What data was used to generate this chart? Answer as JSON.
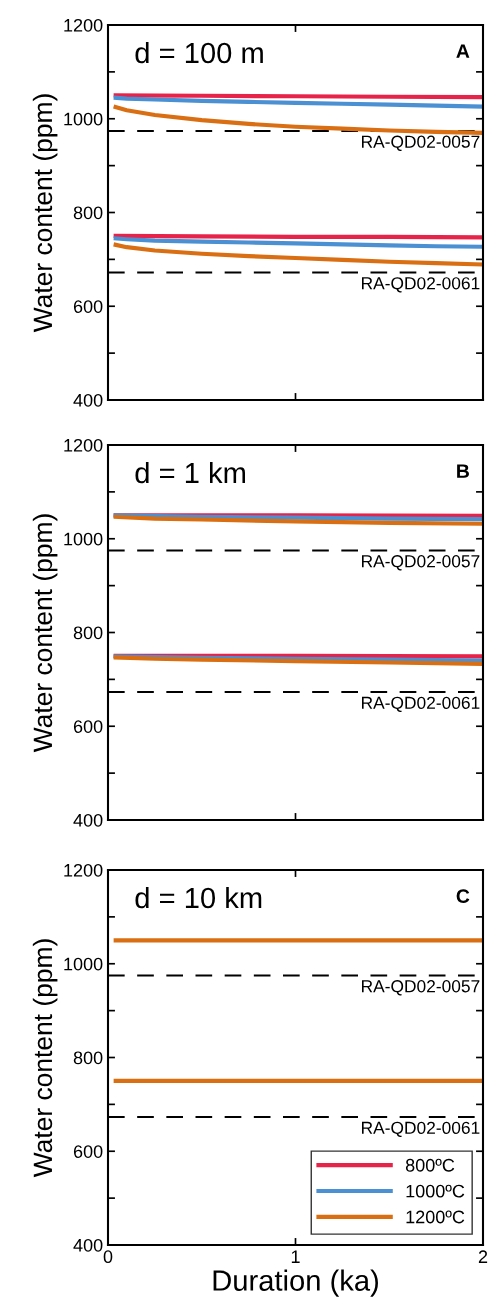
{
  "chart_data": [
    {
      "type": "line",
      "title": "d = 100 m",
      "ylabel": "Water content (ppm)",
      "xlim": [
        0,
        2
      ],
      "xticks": [
        0,
        {
          "value": 1,
          "label": null
        },
        2
      ],
      "ylim": [
        400,
        1200
      ],
      "yticks": [
        400,
        {
          "value": 500,
          "label": null
        },
        600,
        {
          "value": 700,
          "label": null
        },
        800,
        {
          "value": 900,
          "label": null
        },
        1000,
        {
          "value": 1100,
          "label": null
        },
        1200
      ],
      "tick_labels": "y",
      "grid": false,
      "legend": false,
      "line_style": "solid",
      "marker": "none",
      "annotations": [
        "A"
      ],
      "ref_lines": [
        {
          "axis": "y",
          "value": 974,
          "label": "RA-QD02-0057",
          "color": "#000000",
          "line_style": "dashed"
        },
        {
          "axis": "y",
          "value": 672,
          "label": "RA-QD02-0061",
          "color": "#000000",
          "line_style": "dashed"
        }
      ],
      "series": [
        {
          "color": "#e8234a",
          "x": [
            0.03,
            0.5,
            1,
            1.5,
            2
          ],
          "values": [
            1050,
            1049,
            1048,
            1047,
            1046
          ]
        },
        {
          "color": "#4a90d2",
          "x": [
            0.03,
            0.1,
            0.25,
            0.5,
            0.75,
            1,
            1.25,
            1.5,
            1.75,
            2
          ],
          "values": [
            1045,
            1043,
            1041,
            1038,
            1036,
            1034,
            1032,
            1030,
            1028,
            1026
          ]
        },
        {
          "color": "#d96f12",
          "x": [
            0.03,
            0.1,
            0.25,
            0.5,
            0.75,
            1,
            1.25,
            1.5,
            1.75,
            2
          ],
          "values": [
            1026,
            1018,
            1008,
            997,
            989,
            983,
            979,
            975,
            972,
            970
          ]
        },
        {
          "color": "#e8234a",
          "x": [
            0.03,
            0.5,
            1,
            1.5,
            2
          ],
          "values": [
            750,
            749,
            748,
            748,
            747
          ]
        },
        {
          "color": "#4a90d2",
          "x": [
            0.03,
            0.1,
            0.25,
            0.5,
            0.75,
            1,
            1.25,
            1.5,
            1.75,
            2
          ],
          "values": [
            745,
            743,
            740,
            738,
            736,
            734,
            732,
            730,
            728,
            727
          ]
        },
        {
          "color": "#d96f12",
          "x": [
            0.03,
            0.1,
            0.25,
            0.5,
            0.75,
            1,
            1.25,
            1.5,
            1.75,
            2
          ],
          "values": [
            732,
            726,
            719,
            712,
            707,
            703,
            699,
            695,
            692,
            689
          ]
        }
      ]
    },
    {
      "type": "line",
      "title": "d = 1 km",
      "ylabel": "Water content (ppm)",
      "xlim": [
        0,
        2
      ],
      "xticks": [
        0,
        {
          "value": 1,
          "label": null
        },
        2
      ],
      "ylim": [
        400,
        1200
      ],
      "yticks": [
        400,
        {
          "value": 500,
          "label": null
        },
        600,
        {
          "value": 700,
          "label": null
        },
        800,
        {
          "value": 900,
          "label": null
        },
        1000,
        {
          "value": 1100,
          "label": null
        },
        1200
      ],
      "tick_labels": "y",
      "grid": false,
      "legend": false,
      "line_style": "solid",
      "marker": "none",
      "annotations": [
        "B"
      ],
      "ref_lines": [
        {
          "axis": "y",
          "value": 975,
          "label": "RA-QD02-0057",
          "color": "#000000",
          "line_style": "dashed"
        },
        {
          "axis": "y",
          "value": 673,
          "label": "RA-QD02-0061",
          "color": "#000000",
          "line_style": "dashed"
        }
      ],
      "series": [
        {
          "color": "#e8234a",
          "x": [
            0.03,
            1,
            2
          ],
          "values": [
            1050,
            1050,
            1049
          ]
        },
        {
          "color": "#4a90d2",
          "x": [
            0.03,
            0.5,
            1,
            1.5,
            2
          ],
          "values": [
            1050,
            1047,
            1045,
            1043,
            1042
          ]
        },
        {
          "color": "#d96f12",
          "x": [
            0.03,
            0.25,
            0.5,
            1,
            1.5,
            2
          ],
          "values": [
            1047,
            1043,
            1041,
            1037,
            1034,
            1032
          ]
        },
        {
          "color": "#e8234a",
          "x": [
            0.03,
            1,
            2
          ],
          "values": [
            750,
            750,
            749
          ]
        },
        {
          "color": "#4a90d2",
          "x": [
            0.03,
            0.5,
            1,
            1.5,
            2
          ],
          "values": [
            749,
            746,
            744,
            742,
            740
          ]
        },
        {
          "color": "#d96f12",
          "x": [
            0.03,
            0.25,
            0.5,
            1,
            1.5,
            2
          ],
          "values": [
            747,
            744,
            742,
            739,
            736,
            733
          ]
        }
      ]
    },
    {
      "type": "line",
      "title": "d = 10 km",
      "xlabel": "Duration (ka)",
      "ylabel": "Water content (ppm)",
      "xlim": [
        0,
        2
      ],
      "xticks": [
        0,
        1,
        2
      ],
      "ylim": [
        400,
        1200
      ],
      "yticks": [
        400,
        {
          "value": 500,
          "label": null
        },
        600,
        {
          "value": 700,
          "label": null
        },
        800,
        {
          "value": 900,
          "label": null
        },
        1000,
        {
          "value": 1100,
          "label": null
        },
        1200
      ],
      "grid": false,
      "legend": "bottom right",
      "line_style": "solid",
      "marker": "none",
      "annotations": [
        "C"
      ],
      "ref_lines": [
        {
          "axis": "y",
          "value": 975,
          "label": "RA-QD02-0057",
          "color": "#000000",
          "line_style": "dashed"
        },
        {
          "axis": "y",
          "value": 673,
          "label": "RA-QD02-0061",
          "color": "#000000",
          "line_style": "dashed"
        }
      ],
      "series": [
        {
          "name": "800ºC",
          "color": "#e8234a"
        },
        {
          "name": "1000ºC",
          "color": "#4a90d2"
        },
        {
          "name": "1200ºC",
          "color": "#d96f12",
          "x": [
            0.03,
            2
          ],
          "values": [
            1050,
            1050
          ]
        },
        {
          "color": "#d96f12",
          "x": [
            0.03,
            2
          ],
          "values": [
            750,
            750
          ]
        }
      ]
    }
  ]
}
